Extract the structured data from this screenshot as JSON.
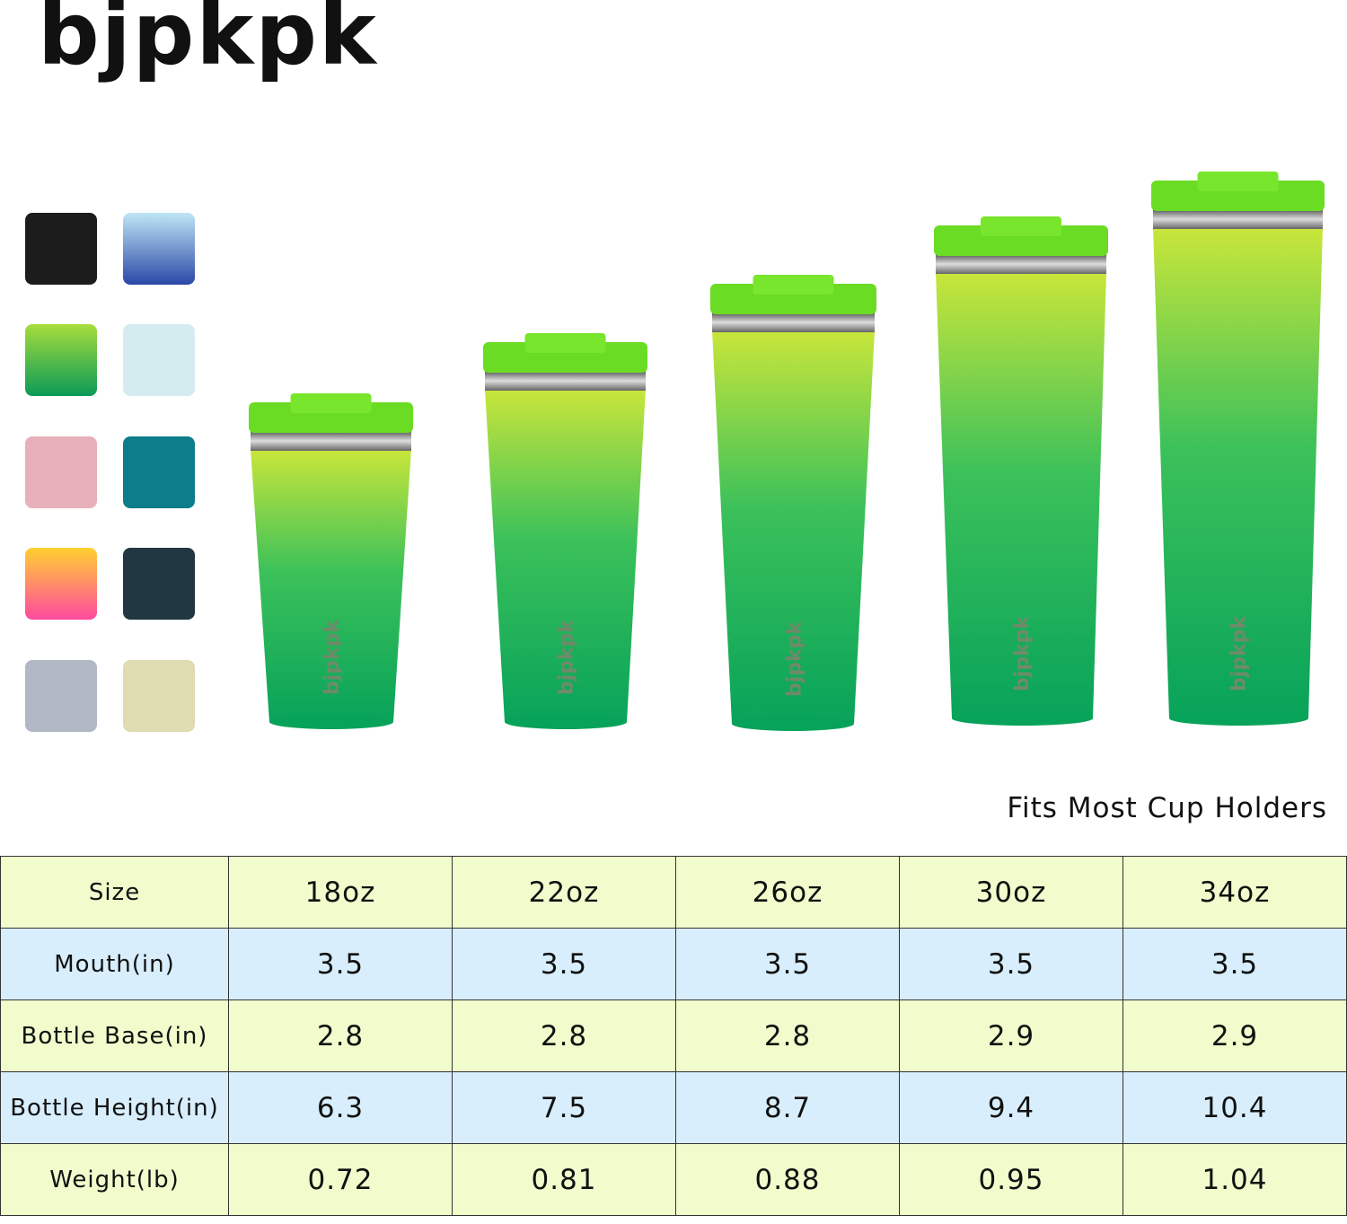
{
  "header": {
    "brand": "BJPKPK"
  },
  "caption": "Fits Most Cup Holders",
  "table": {
    "rows": [
      [
        "Size",
        "18oz",
        "22oz",
        "26oz",
        "30oz",
        "34oz"
      ],
      [
        "Mouth(in)",
        "3.5",
        "3.5",
        "3.5",
        "3.5",
        "3.5"
      ],
      [
        "Bottle Base(in)",
        "2.8",
        "2.8",
        "2.8",
        "2.9",
        "2.9"
      ],
      [
        "Bottle Height(in)",
        "6.3",
        "7.5",
        "8.7",
        "9.4",
        "10.4"
      ],
      [
        "Weight(lb)",
        "0.72",
        "0.81",
        "0.88",
        "0.95",
        "1.04"
      ]
    ]
  }
}
